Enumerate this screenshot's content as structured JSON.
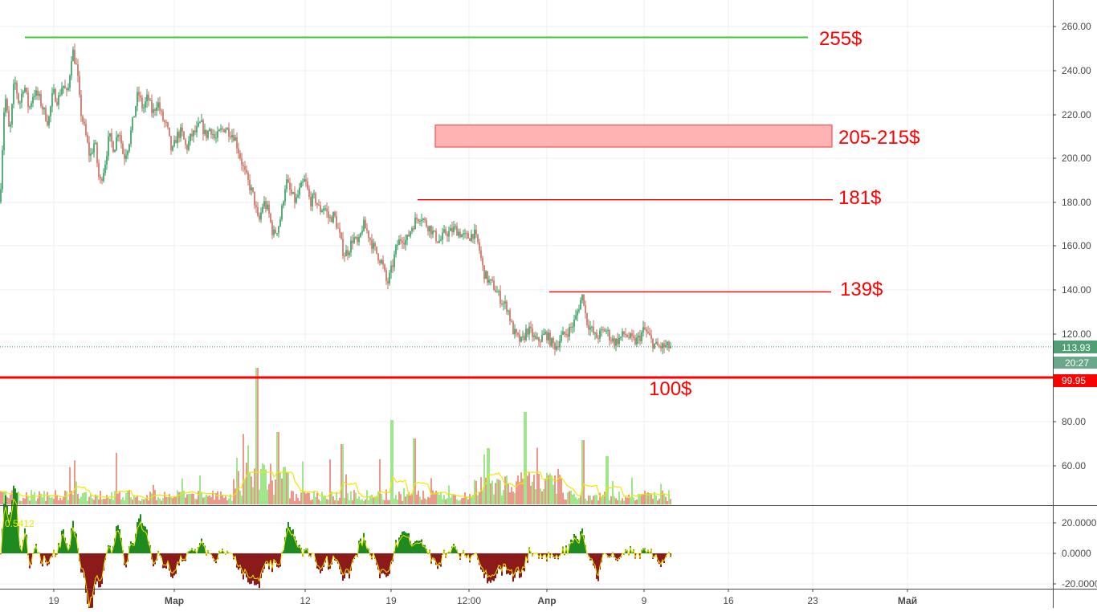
{
  "chart_data": {
    "type": "candlestick",
    "colors": {
      "up": "#2f9a5a",
      "down": "#c46a5a",
      "accent_green": "#33cc33",
      "accent_red": "#ff0000",
      "zone_fill": "#ffb3b3",
      "indicator_line": "#f2e600"
    },
    "y_ticks": [
      "260.00",
      "240.00",
      "220.00",
      "200.00",
      "180.00",
      "160.00",
      "140.00",
      "120.00",
      "80.00",
      "60.00"
    ],
    "osc_ticks": [
      "20.0000",
      "0.0000",
      "-20.0000"
    ],
    "x_ticks": [
      "19",
      "Мар",
      "12",
      "19",
      "12:00",
      "Апр",
      "9",
      "16",
      "23",
      "Май"
    ],
    "price_path": [
      [
        0,
        180
      ],
      [
        6,
        230
      ],
      [
        12,
        210
      ],
      [
        18,
        236
      ],
      [
        24,
        224
      ],
      [
        30,
        234
      ],
      [
        36,
        222
      ],
      [
        42,
        230
      ],
      [
        48,
        228
      ],
      [
        54,
        222
      ],
      [
        60,
        216
      ],
      [
        66,
        230
      ],
      [
        72,
        226
      ],
      [
        78,
        234
      ],
      [
        84,
        228
      ],
      [
        90,
        250
      ],
      [
        96,
        240
      ],
      [
        100,
        222
      ],
      [
        106,
        212
      ],
      [
        112,
        200
      ],
      [
        118,
        208
      ],
      [
        124,
        188
      ],
      [
        130,
        196
      ],
      [
        136,
        210
      ],
      [
        142,
        204
      ],
      [
        148,
        214
      ],
      [
        154,
        200
      ],
      [
        160,
        206
      ],
      [
        166,
        218
      ],
      [
        172,
        230
      ],
      [
        178,
        222
      ],
      [
        184,
        228
      ],
      [
        190,
        220
      ],
      [
        196,
        226
      ],
      [
        202,
        218
      ],
      [
        208,
        214
      ],
      [
        214,
        202
      ],
      [
        220,
        210
      ],
      [
        226,
        212
      ],
      [
        232,
        204
      ],
      [
        238,
        210
      ],
      [
        244,
        212
      ],
      [
        250,
        216
      ],
      [
        256,
        210
      ],
      [
        262,
        214
      ],
      [
        268,
        208
      ],
      [
        274,
        212
      ],
      [
        280,
        214
      ],
      [
        286,
        212
      ],
      [
        292,
        210
      ],
      [
        298,
        202
      ],
      [
        304,
        194
      ],
      [
        310,
        188
      ],
      [
        316,
        182
      ],
      [
        322,
        170
      ],
      [
        328,
        180
      ],
      [
        334,
        176
      ],
      [
        340,
        165
      ],
      [
        346,
        168
      ],
      [
        350,
        174
      ],
      [
        356,
        190
      ],
      [
        362,
        184
      ],
      [
        368,
        180
      ],
      [
        374,
        186
      ],
      [
        380,
        190
      ],
      [
        386,
        180
      ],
      [
        392,
        182
      ],
      [
        398,
        176
      ],
      [
        404,
        178
      ],
      [
        410,
        172
      ],
      [
        416,
        174
      ],
      [
        422,
        166
      ],
      [
        428,
        156
      ],
      [
        434,
        158
      ],
      [
        440,
        164
      ],
      [
        446,
        160
      ],
      [
        452,
        170
      ],
      [
        458,
        166
      ],
      [
        464,
        160
      ],
      [
        470,
        156
      ],
      [
        476,
        152
      ],
      [
        482,
        142
      ],
      [
        488,
        150
      ],
      [
        494,
        160
      ],
      [
        500,
        164
      ],
      [
        506,
        162
      ],
      [
        512,
        168
      ],
      [
        518,
        172
      ],
      [
        524,
        174
      ],
      [
        530,
        170
      ],
      [
        536,
        168
      ],
      [
        542,
        164
      ],
      [
        548,
        162
      ],
      [
        554,
        166
      ],
      [
        560,
        166
      ],
      [
        566,
        168
      ],
      [
        572,
        166
      ],
      [
        578,
        164
      ],
      [
        584,
        164
      ],
      [
        590,
        166
      ],
      [
        596,
        160
      ],
      [
        602,
        148
      ],
      [
        608,
        144
      ],
      [
        614,
        142
      ],
      [
        620,
        138
      ],
      [
        626,
        134
      ],
      [
        632,
        132
      ],
      [
        638,
        122
      ],
      [
        644,
        118
      ],
      [
        650,
        116
      ],
      [
        656,
        122
      ],
      [
        662,
        120
      ],
      [
        668,
        116
      ],
      [
        674,
        118
      ],
      [
        680,
        120
      ],
      [
        686,
        116
      ],
      [
        692,
        114
      ],
      [
        698,
        118
      ],
      [
        704,
        120
      ],
      [
        710,
        122
      ],
      [
        716,
        126
      ],
      [
        722,
        134
      ],
      [
        726,
        138
      ],
      [
        730,
        126
      ],
      [
        736,
        122
      ],
      [
        742,
        118
      ],
      [
        748,
        120
      ],
      [
        754,
        122
      ],
      [
        760,
        118
      ],
      [
        766,
        116
      ],
      [
        772,
        118
      ],
      [
        778,
        120
      ],
      [
        784,
        118
      ],
      [
        790,
        116
      ],
      [
        796,
        118
      ],
      [
        802,
        122
      ],
      [
        806,
        120
      ],
      [
        812,
        116
      ],
      [
        818,
        114
      ],
      [
        824,
        114
      ],
      [
        830,
        114
      ],
      [
        836,
        113.93
      ]
    ],
    "levels": [
      {
        "value": 255,
        "label": "255$",
        "color": "#33cc33"
      },
      {
        "value": 181,
        "label": "181$",
        "color": "#ff0000"
      },
      {
        "value": 139,
        "label": "139$",
        "color": "#ff0000"
      },
      {
        "value": 100,
        "label": "100$",
        "color": "#ff0000"
      }
    ],
    "zone": {
      "low": 205,
      "high": 215,
      "label": "205-215$"
    },
    "last_price": "113.93",
    "countdown": "20:27",
    "level_price_tag": "99.95",
    "oscillator_label": "0.5412"
  }
}
